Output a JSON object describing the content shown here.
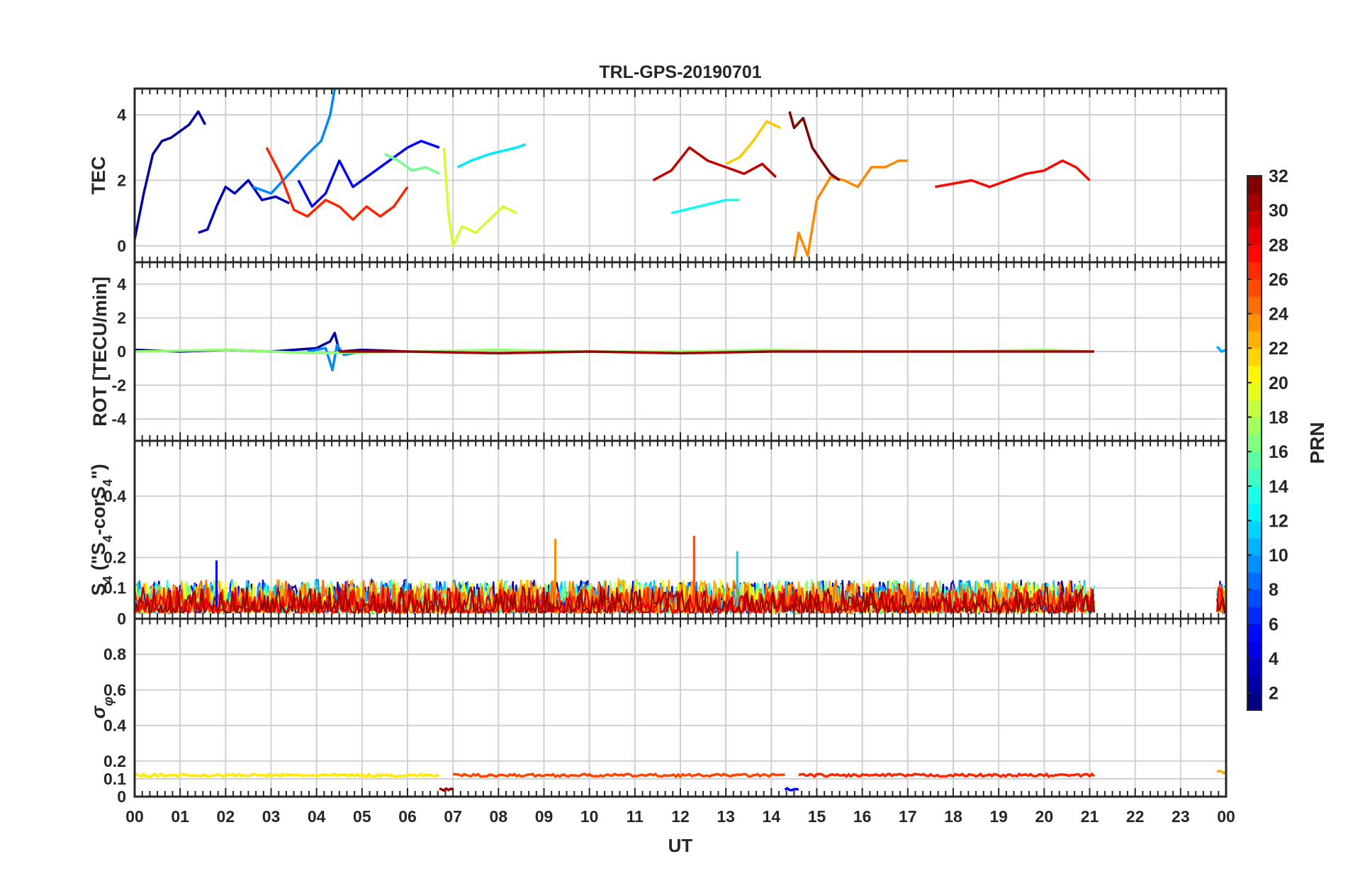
{
  "chart_data": {
    "type": "line",
    "title": "TRL-GPS-20190701",
    "xlabel": "UT",
    "x_ticks": [
      "00",
      "01",
      "02",
      "03",
      "04",
      "05",
      "06",
      "07",
      "08",
      "09",
      "10",
      "11",
      "12",
      "13",
      "14",
      "15",
      "16",
      "17",
      "18",
      "19",
      "20",
      "21",
      "22",
      "23",
      "00"
    ],
    "xlim": [
      0,
      24
    ],
    "colorbar": {
      "label": "PRN",
      "range": [
        1,
        32
      ],
      "ticks": [
        2,
        4,
        6,
        8,
        10,
        12,
        14,
        16,
        18,
        20,
        22,
        24,
        26,
        28,
        30,
        32
      ],
      "tick_labels": [
        "2",
        "4",
        "6",
        "8",
        "10",
        "12",
        "14",
        "16",
        "18",
        "20",
        "22",
        "24",
        "26",
        "28",
        "30",
        "32"
      ],
      "colormap": "jet"
    },
    "panels": [
      {
        "id": "tec",
        "ylabel": "TEC",
        "ylim": [
          -0.5,
          4.8
        ],
        "y_ticks": [
          0,
          2,
          4
        ],
        "y_tick_labels": [
          "0",
          "2",
          "4"
        ],
        "series": [
          {
            "prn": 2,
            "x": [
              0.0,
              0.2,
              0.4,
              0.6,
              0.8,
              1.0,
              1.2,
              1.4,
              1.55
            ],
            "y": [
              0.2,
              1.6,
              2.8,
              3.2,
              3.3,
              3.5,
              3.7,
              4.1,
              3.7
            ]
          },
          {
            "prn": 3,
            "x": [
              1.4,
              1.6,
              1.8,
              2.0,
              2.2,
              2.5,
              2.8,
              3.1,
              3.4
            ],
            "y": [
              0.4,
              0.5,
              1.2,
              1.8,
              1.6,
              2.0,
              1.4,
              1.5,
              1.3
            ]
          },
          {
            "prn": 5,
            "x": [
              3.6,
              3.9,
              4.2,
              4.5,
              4.8,
              5.2,
              5.6,
              6.0,
              6.3,
              6.7
            ],
            "y": [
              2.0,
              1.2,
              1.6,
              2.6,
              1.8,
              2.2,
              2.6,
              3.0,
              3.2,
              3.0
            ]
          },
          {
            "prn": 9,
            "x": [
              2.6,
              3.0,
              3.4,
              3.8,
              4.1,
              4.3,
              4.4
            ],
            "y": [
              1.8,
              1.6,
              2.2,
              2.8,
              3.2,
              4.0,
              4.8
            ]
          },
          {
            "prn": 12,
            "x": [
              7.1,
              7.4,
              7.8,
              8.1,
              8.4,
              8.6
            ],
            "y": [
              2.4,
              2.6,
              2.8,
              2.9,
              3.0,
              3.1
            ]
          },
          {
            "prn": 13,
            "x": [
              11.8,
              12.1,
              12.4,
              12.7,
              13.0,
              13.3
            ],
            "y": [
              1.0,
              1.1,
              1.2,
              1.3,
              1.4,
              1.4
            ]
          },
          {
            "prn": 16,
            "x": [
              5.5,
              5.8,
              6.1,
              6.4,
              6.7
            ],
            "y": [
              2.8,
              2.6,
              2.3,
              2.4,
              2.2
            ]
          },
          {
            "prn": 19,
            "x": [
              6.8,
              6.9,
              7.0,
              7.2,
              7.5,
              7.8,
              8.1,
              8.4
            ],
            "y": [
              3.0,
              1.0,
              0.0,
              0.6,
              0.4,
              0.8,
              1.2,
              1.0
            ]
          },
          {
            "prn": 22,
            "x": [
              13.0,
              13.3,
              13.6,
              13.9,
              14.2
            ],
            "y": [
              2.5,
              2.7,
              3.2,
              3.8,
              3.6
            ]
          },
          {
            "prn": 24,
            "x": [
              14.5,
              14.6,
              14.8,
              15.0,
              15.3,
              15.6,
              15.9,
              16.2,
              16.5,
              16.8,
              17.0
            ],
            "y": [
              -0.5,
              0.4,
              -0.3,
              1.4,
              2.1,
              2.0,
              1.8,
              2.4,
              2.4,
              2.6,
              2.6
            ]
          },
          {
            "prn": 27,
            "x": [
              2.9,
              3.2,
              3.5,
              3.8,
              4.2,
              4.5,
              4.8,
              5.1,
              5.4,
              5.7,
              6.0
            ],
            "y": [
              3.0,
              2.2,
              1.1,
              0.9,
              1.4,
              1.2,
              0.8,
              1.2,
              0.9,
              1.2,
              1.8
            ]
          },
          {
            "prn": 28,
            "x": [
              17.6,
              18.0,
              18.4,
              18.8,
              19.2,
              19.6,
              20.0,
              20.4,
              20.7,
              21.0
            ],
            "y": [
              1.8,
              1.9,
              2.0,
              1.8,
              2.0,
              2.2,
              2.3,
              2.6,
              2.4,
              2.0
            ]
          },
          {
            "prn": 30,
            "x": [
              11.4,
              11.8,
              12.2,
              12.6,
              13.0,
              13.4,
              13.8,
              14.1
            ],
            "y": [
              2.0,
              2.3,
              3.0,
              2.6,
              2.4,
              2.2,
              2.5,
              2.1
            ]
          },
          {
            "prn": 32,
            "x": [
              14.4,
              14.5,
              14.7,
              14.9,
              15.1,
              15.3,
              15.5
            ],
            "y": [
              4.1,
              3.6,
              3.9,
              3.0,
              2.6,
              2.2,
              2.0
            ]
          }
        ]
      },
      {
        "id": "rot",
        "ylabel": "ROT [TECU/min]",
        "ylim": [
          -5.3,
          5.3
        ],
        "y_ticks": [
          -4,
          -2,
          0,
          2,
          4
        ],
        "y_tick_labels": [
          "-4",
          "-2",
          "0",
          "2",
          "4"
        ],
        "series": [
          {
            "prn": 2,
            "x": [
              0.0,
              1.0,
              2.0,
              3.0,
              4.0,
              4.3,
              4.4,
              4.5,
              5.0,
              6.0
            ],
            "y": [
              0.1,
              0.0,
              0.1,
              0.0,
              0.2,
              0.6,
              1.1,
              0.0,
              0.1,
              0.0
            ]
          },
          {
            "prn": 9,
            "x": [
              3.8,
              4.2,
              4.35,
              4.45,
              4.6,
              5.0
            ],
            "y": [
              0.0,
              0.2,
              -1.1,
              0.4,
              -0.2,
              0.0
            ]
          },
          {
            "prn": 17,
            "x": [
              0.0,
              2.0,
              4.0,
              6.0,
              8.0,
              10.0,
              12.0,
              14.0,
              16.0,
              18.0,
              20.0,
              21.1
            ],
            "y": [
              0.0,
              0.1,
              -0.1,
              0.0,
              0.1,
              0.0,
              0.0,
              0.1,
              0.0,
              0.0,
              0.1,
              0.0
            ]
          },
          {
            "prn": 31,
            "x": [
              4.5,
              6.0,
              8.0,
              10.0,
              12.0,
              14.0,
              16.0,
              18.0,
              20.0,
              21.1
            ],
            "y": [
              0.0,
              0.0,
              -0.1,
              0.0,
              -0.1,
              0.0,
              0.0,
              0.0,
              0.0,
              0.0
            ]
          },
          {
            "prn": 10,
            "x": [
              23.8,
              23.9,
              24.0
            ],
            "y": [
              0.3,
              0.0,
              0.1
            ]
          }
        ]
      },
      {
        "id": "s4",
        "ylabel": "S4 (\"S4-corS4\")",
        "ylabel_parts": {
          "main": "S",
          "sub": "4",
          "mid": " (\"S",
          "sub2": "4",
          "mid2": "-corS",
          "sub3": "4",
          "end": "\")"
        },
        "ylim": [
          0,
          0.58
        ],
        "y_ticks": [
          0,
          0.1,
          0.2,
          0.4
        ],
        "y_tick_labels": [
          "0",
          "0.1",
          "0.2",
          "0.4"
        ],
        "noise_segments": [
          {
            "from": 0.0,
            "to": 21.1,
            "base": 0.02,
            "amp": 0.12
          },
          {
            "from": 23.8,
            "to": 24.0,
            "base": 0.02,
            "amp": 0.12
          }
        ],
        "peaks": [
          {
            "prn": 24,
            "x": 9.25,
            "y": 0.26
          },
          {
            "prn": 26,
            "x": 12.3,
            "y": 0.27
          },
          {
            "prn": 11,
            "x": 13.25,
            "y": 0.22
          },
          {
            "prn": 4,
            "x": 1.8,
            "y": 0.19
          }
        ]
      },
      {
        "id": "sigma",
        "ylabel": "σφ",
        "ylabel_parts": {
          "main": "σ",
          "sub": "φ"
        },
        "ylim": [
          0,
          1.0
        ],
        "y_ticks": [
          0,
          0.1,
          0.2,
          0.4,
          0.6,
          0.8
        ],
        "y_tick_labels": [
          "0",
          "0.1",
          "0.2",
          "0.4",
          "0.6",
          "0.8"
        ],
        "segments": [
          {
            "prn": 21,
            "from": 0.0,
            "to": 6.7,
            "level": 0.12
          },
          {
            "prn": 31,
            "from": 6.7,
            "to": 7.0,
            "level": 0.04
          },
          {
            "prn": 26,
            "from": 7.0,
            "to": 14.3,
            "level": 0.12
          },
          {
            "prn": 5,
            "from": 14.3,
            "to": 14.6,
            "level": 0.04
          },
          {
            "prn": 27,
            "from": 14.6,
            "to": 21.1,
            "level": 0.12
          },
          {
            "prn": 23,
            "from": 23.8,
            "to": 24.0,
            "level": 0.14
          }
        ]
      }
    ]
  }
}
